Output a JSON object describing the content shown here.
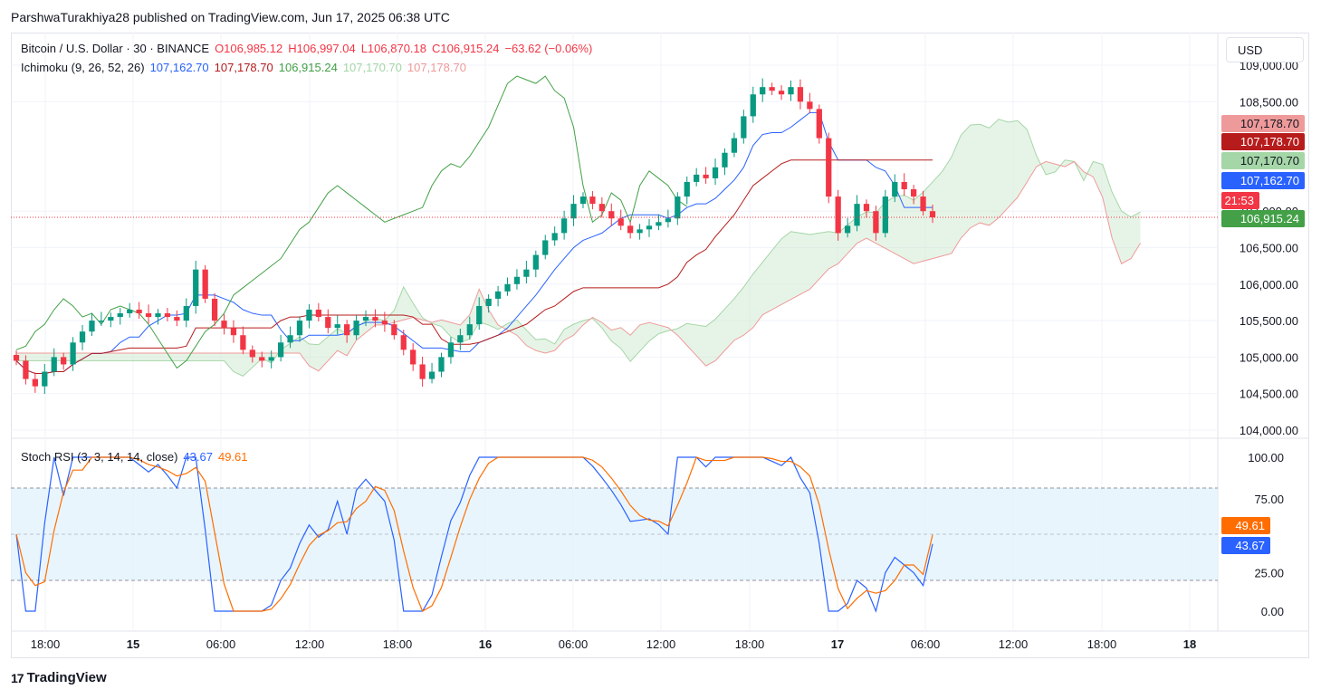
{
  "header": {
    "published_line": "ParshwaTurakhiya28 published on TradingView.com, Jun 17, 2025 06:38 UTC"
  },
  "legend": {
    "symbol": "Bitcoin / U.S. Dollar · 30 · BINANCE",
    "open": "O106,985.12",
    "high": "H106,997.04",
    "low": "L106,870.18",
    "close": "C106,915.24",
    "change": "−63.62 (−0.06%)",
    "ichimoku_label": "Ichimoku (9, 26, 52, 26)",
    "ichimoku_values": [
      "107,162.70",
      "107,178.70",
      "106,915.24",
      "107,170.70",
      "107,178.70"
    ],
    "stoch_label": "Stoch RSI (3, 3, 14, 14, close)",
    "stoch_k": "43.67",
    "stoch_d": "49.61"
  },
  "scale_button": "USD",
  "price_axis": [
    "109,000.00",
    "108,500.00",
    "107,000.00",
    "106,500.00",
    "106,000.00",
    "105,500.00",
    "105,000.00",
    "104,500.00",
    "104,000.00"
  ],
  "stoch_axis": [
    "100.00",
    "75.00",
    "25.00",
    "0.00"
  ],
  "time_axis": [
    "18:00",
    "15",
    "06:00",
    "12:00",
    "18:00",
    "16",
    "06:00",
    "12:00",
    "18:00",
    "17",
    "06:00",
    "12:00",
    "18:00",
    "18"
  ],
  "price_badges": {
    "senkou_b": "107,178.70",
    "kijun": "107,178.70",
    "senkou_a": "107,170.70",
    "tenkan": "107,162.70",
    "countdown": "21:53",
    "last_price": "106,915.24",
    "stoch_d": "49.61",
    "stoch_k": "43.67"
  },
  "colors": {
    "up": "#089981",
    "down": "#f23645",
    "tenkan": "#2962ff",
    "kijun": "#b71c1c",
    "chikou": "#43a047",
    "senkou_a": "#a5d6a7",
    "senkou_b": "#ef9a9a",
    "stoch_k": "#2962ff",
    "stoch_d": "#ff6d00"
  },
  "brand": "TradingView",
  "chart_data": {
    "type": "candlestick",
    "title": "Bitcoin / U.S. Dollar · 30 · BINANCE",
    "ylim": [
      104000,
      109000
    ],
    "close_series_approx": [
      104950,
      104700,
      104600,
      104800,
      105000,
      104900,
      105200,
      105350,
      105500,
      105500,
      105550,
      105600,
      105650,
      105600,
      105550,
      105600,
      105550,
      105500,
      105700,
      106200,
      105800,
      105500,
      105400,
      105300,
      105100,
      105000,
      104950,
      105000,
      105200,
      105300,
      105500,
      105650,
      105550,
      105400,
      105450,
      105300,
      105500,
      105550,
      105500,
      105450,
      105300,
      105100,
      104900,
      104700,
      104800,
      105000,
      105200,
      105300,
      105450,
      105700,
      105800,
      105900,
      106000,
      106100,
      106200,
      106400,
      106600,
      106700,
      106900,
      107100,
      107200,
      107100,
      107000,
      106900,
      106800,
      106700,
      106750,
      106800,
      106850,
      106900,
      107200,
      107400,
      107500,
      107450,
      107600,
      107800,
      108000,
      108300,
      108600,
      108700,
      108650,
      108600,
      108700,
      108500,
      108400,
      108000,
      107200,
      106700,
      106800,
      107100,
      107000,
      106700,
      107200,
      107400,
      107300,
      107200,
      107000,
      106915
    ],
    "stoch_rsi": {
      "ylim": [
        0,
        100
      ],
      "bands": [
        20,
        80
      ],
      "k_last": 43.67,
      "d_last": 49.61
    }
  }
}
